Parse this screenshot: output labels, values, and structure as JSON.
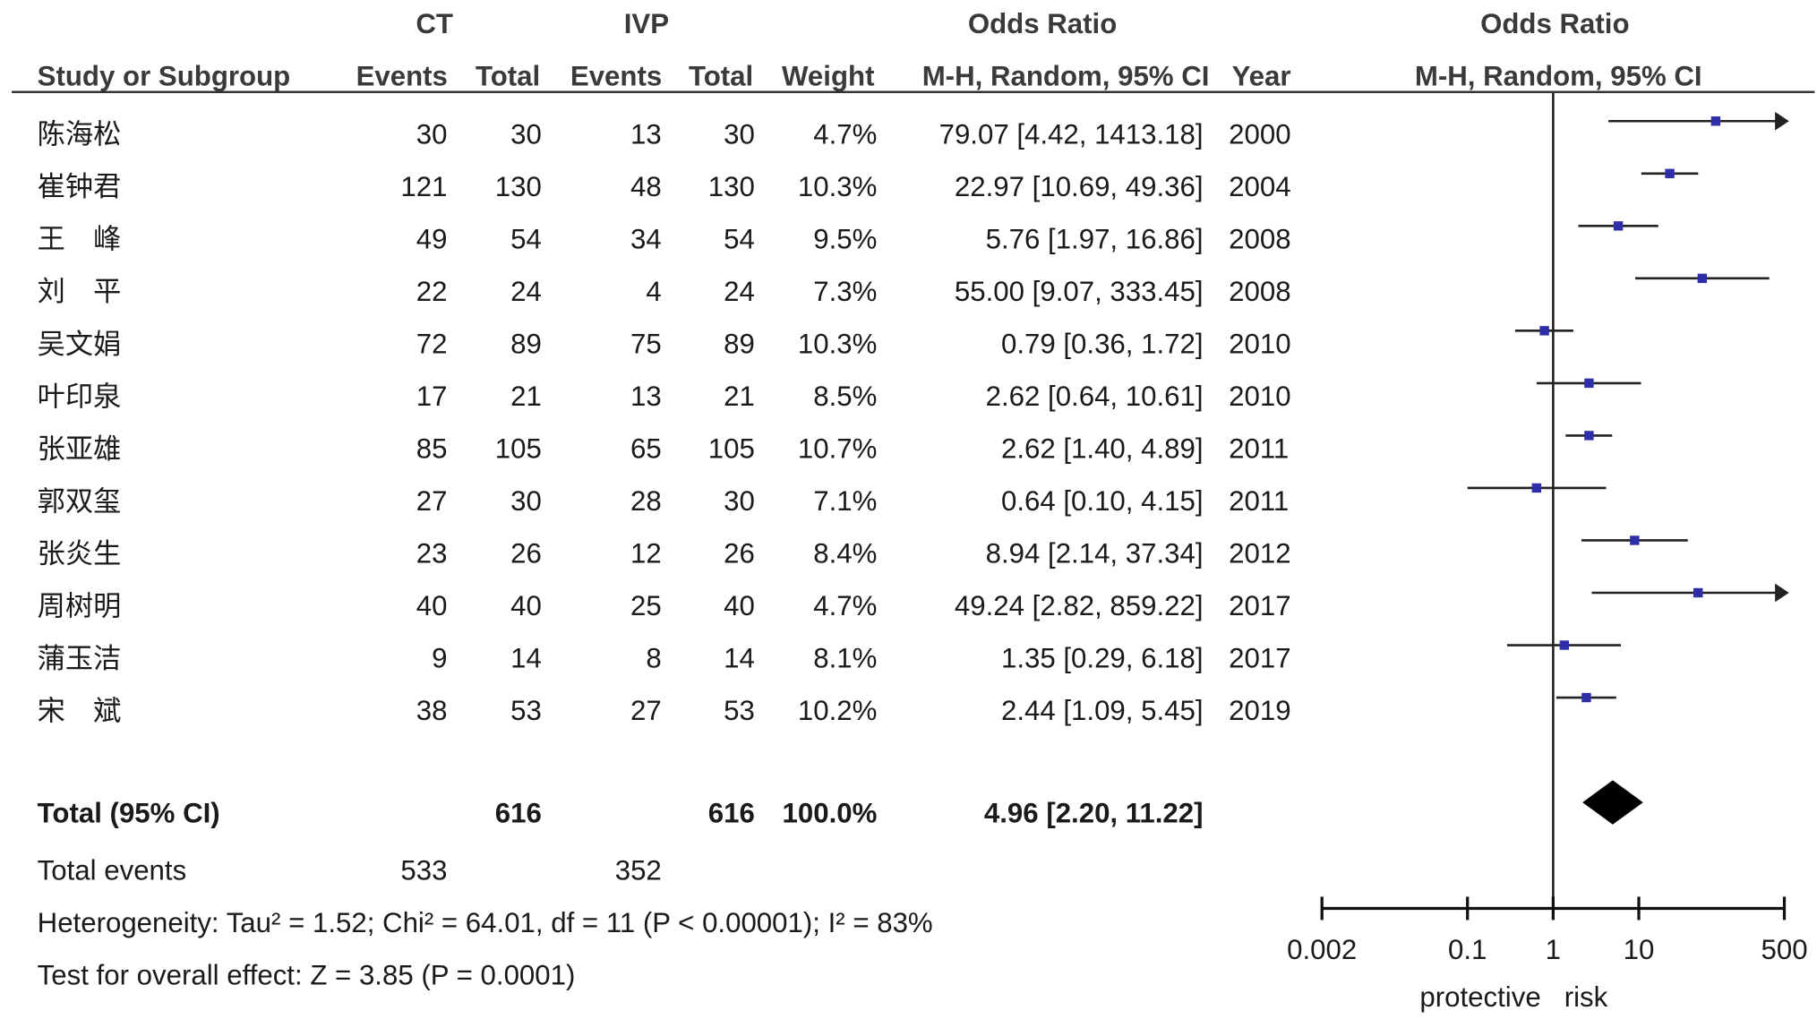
{
  "chart_data": {
    "type": "forest",
    "group_headers": [
      "CT",
      "IVP",
      "Odds Ratio",
      "Odds Ratio"
    ],
    "columns": [
      "Study or Subgroup",
      "Events",
      "Total",
      "Events",
      "Total",
      "Weight",
      "M-H, Random, 95% CI",
      "Year",
      "M-H, Random, 95% CI"
    ],
    "studies": [
      {
        "name": "陈海松",
        "ct_events": 30,
        "ct_total": 30,
        "ivp_events": 13,
        "ivp_total": 30,
        "weight": "4.7%",
        "ci": "79.07 [4.42, 1413.18]",
        "or": 79.07,
        "lower": 4.42,
        "upper": 1413.18,
        "year": 2000
      },
      {
        "name": "崔钟君",
        "ct_events": 121,
        "ct_total": 130,
        "ivp_events": 48,
        "ivp_total": 130,
        "weight": "10.3%",
        "ci": "22.97 [10.69, 49.36]",
        "or": 22.97,
        "lower": 10.69,
        "upper": 49.36,
        "year": 2004
      },
      {
        "name": "王　峰",
        "ct_events": 49,
        "ct_total": 54,
        "ivp_events": 34,
        "ivp_total": 54,
        "weight": "9.5%",
        "ci": "5.76 [1.97, 16.86]",
        "or": 5.76,
        "lower": 1.97,
        "upper": 16.86,
        "year": 2008
      },
      {
        "name": "刘　平",
        "ct_events": 22,
        "ct_total": 24,
        "ivp_events": 4,
        "ivp_total": 24,
        "weight": "7.3%",
        "ci": "55.00 [9.07, 333.45]",
        "or": 55.0,
        "lower": 9.07,
        "upper": 333.45,
        "year": 2008
      },
      {
        "name": "吴文娟",
        "ct_events": 72,
        "ct_total": 89,
        "ivp_events": 75,
        "ivp_total": 89,
        "weight": "10.3%",
        "ci": "0.79 [0.36, 1.72]",
        "or": 0.79,
        "lower": 0.36,
        "upper": 1.72,
        "year": 2010
      },
      {
        "name": "叶印泉",
        "ct_events": 17,
        "ct_total": 21,
        "ivp_events": 13,
        "ivp_total": 21,
        "weight": "8.5%",
        "ci": "2.62 [0.64, 10.61]",
        "or": 2.62,
        "lower": 0.64,
        "upper": 10.61,
        "year": 2010
      },
      {
        "name": "张亚雄",
        "ct_events": 85,
        "ct_total": 105,
        "ivp_events": 65,
        "ivp_total": 105,
        "weight": "10.7%",
        "ci": "2.62 [1.40, 4.89]",
        "or": 2.62,
        "lower": 1.4,
        "upper": 4.89,
        "year": 2011
      },
      {
        "name": "郭双玺",
        "ct_events": 27,
        "ct_total": 30,
        "ivp_events": 28,
        "ivp_total": 30,
        "weight": "7.1%",
        "ci": "0.64 [0.10, 4.15]",
        "or": 0.64,
        "lower": 0.1,
        "upper": 4.15,
        "year": 2011
      },
      {
        "name": "张炎生",
        "ct_events": 23,
        "ct_total": 26,
        "ivp_events": 12,
        "ivp_total": 26,
        "weight": "8.4%",
        "ci": "8.94 [2.14, 37.34]",
        "or": 8.94,
        "lower": 2.14,
        "upper": 37.34,
        "year": 2012
      },
      {
        "name": "周树明",
        "ct_events": 40,
        "ct_total": 40,
        "ivp_events": 25,
        "ivp_total": 40,
        "weight": "4.7%",
        "ci": "49.24 [2.82, 859.22]",
        "or": 49.24,
        "lower": 2.82,
        "upper": 859.22,
        "year": 2017
      },
      {
        "name": "蒲玉洁",
        "ct_events": 9,
        "ct_total": 14,
        "ivp_events": 8,
        "ivp_total": 14,
        "weight": "8.1%",
        "ci": "1.35 [0.29, 6.18]",
        "or": 1.35,
        "lower": 0.29,
        "upper": 6.18,
        "year": 2017
      },
      {
        "name": "宋　斌",
        "ct_events": 38,
        "ct_total": 53,
        "ivp_events": 27,
        "ivp_total": 53,
        "weight": "10.2%",
        "ci": "2.44 [1.09, 5.45]",
        "or": 2.44,
        "lower": 1.09,
        "upper": 5.45,
        "year": 2019
      }
    ],
    "total": {
      "name": "Total (95% CI)",
      "ct_total": 616,
      "ivp_total": 616,
      "weight": "100.0%",
      "ci": "4.96 [2.20, 11.22]",
      "or": 4.96,
      "lower": 2.2,
      "upper": 11.22
    },
    "total_events": {
      "name": "Total events",
      "ct_events": 533,
      "ivp_events": 352
    },
    "heterogeneity": "Heterogeneity: Tau² = 1.52; Chi² = 64.01, df = 11 (P < 0.00001); I² = 83%",
    "overall_effect": "Test for overall effect: Z = 3.85 (P = 0.0001)",
    "log_x": true,
    "xlim": [
      0.002,
      500
    ],
    "xticks": [
      0.002,
      0.1,
      1,
      10,
      500
    ],
    "reference_line": 1,
    "axis_labels": [
      "protective",
      "risk"
    ],
    "marker_color": "#2e2ea8"
  }
}
